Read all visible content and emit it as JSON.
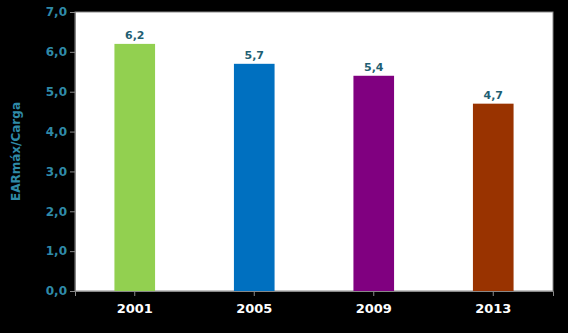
{
  "chart_data": {
    "type": "bar",
    "ylabel": "EARmáx/Carga",
    "categories": [
      "2001",
      "2005",
      "2009",
      "2013"
    ],
    "values": [
      6.2,
      5.7,
      5.4,
      4.7
    ],
    "value_labels": [
      "6,2",
      "5,7",
      "5,4",
      "4,7"
    ],
    "colors": [
      "#92D050",
      "#0070C0",
      "#800080",
      "#993300"
    ],
    "ylim": [
      0,
      7
    ],
    "yticks": [
      {
        "value": 0,
        "label": "0,0"
      },
      {
        "value": 1,
        "label": "1,0"
      },
      {
        "value": 2,
        "label": "2,0"
      },
      {
        "value": 3,
        "label": "3,0"
      },
      {
        "value": 4,
        "label": "4,0"
      },
      {
        "value": 5,
        "label": "5,0"
      },
      {
        "value": 6,
        "label": "6,0"
      },
      {
        "value": 7,
        "label": "7,0"
      }
    ],
    "grid": false,
    "data_labels": true
  }
}
